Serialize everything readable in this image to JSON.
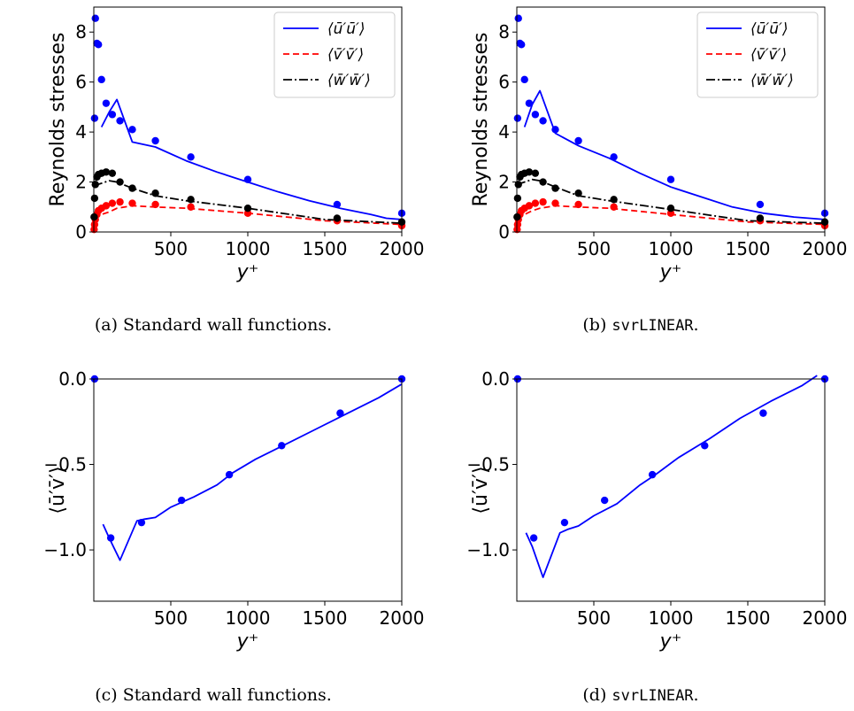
{
  "chart_data": [
    {
      "id": "a",
      "type": "line",
      "caption": "(a) Standard wall functions.",
      "xlabel": "y⁺",
      "ylabel": "Reynolds stresses",
      "xlim": [
        0,
        2000
      ],
      "ylim": [
        0,
        9
      ],
      "xticks": [
        500,
        1000,
        1500,
        2000
      ],
      "yticks": [
        0,
        2,
        4,
        6,
        8
      ],
      "legend_position": "top-right",
      "series": [
        {
          "name": "⟨ū′ū′⟩",
          "style": "solid",
          "color": "#0000ff",
          "x": [
            50,
            100,
            150,
            250,
            400,
            600,
            800,
            1000,
            1200,
            1400,
            1600,
            1800,
            1900,
            2000
          ],
          "y": [
            4.2,
            4.8,
            5.3,
            3.6,
            3.4,
            2.85,
            2.4,
            2.0,
            1.6,
            1.25,
            0.95,
            0.7,
            0.55,
            0.5
          ]
        },
        {
          "name": "⟨v̄′v̄′⟩",
          "style": "dashed",
          "color": "#ff0000",
          "x": [
            0,
            50,
            100,
            150,
            250,
            400,
            600,
            1000,
            1500,
            2000
          ],
          "y": [
            0.55,
            0.7,
            0.8,
            0.95,
            1.05,
            1.0,
            0.95,
            0.75,
            0.45,
            0.3
          ]
        },
        {
          "name": "⟨w̄′w̄′⟩",
          "style": "dashdot",
          "color": "#000000",
          "x": [
            0,
            50,
            100,
            150,
            250,
            400,
            600,
            1000,
            1500,
            2000
          ],
          "y": [
            1.85,
            1.95,
            2.05,
            2.0,
            1.75,
            1.45,
            1.25,
            0.95,
            0.5,
            0.35
          ]
        }
      ],
      "points": [
        {
          "color": "#0000ff",
          "x": [
            5,
            10,
            20,
            30,
            50,
            80,
            120,
            170,
            250,
            400,
            630,
            1000,
            1580,
            2000
          ],
          "y": [
            4.55,
            8.55,
            7.55,
            7.5,
            6.1,
            5.15,
            4.7,
            4.45,
            4.1,
            3.65,
            3.0,
            2.1,
            1.1,
            0.75
          ]
        },
        {
          "color": "#ff0000",
          "x": [
            2,
            5,
            10,
            20,
            30,
            50,
            80,
            120,
            170,
            250,
            400,
            630,
            1000,
            1580,
            2000
          ],
          "y": [
            0.1,
            0.3,
            0.5,
            0.7,
            0.85,
            0.95,
            1.05,
            1.15,
            1.2,
            1.15,
            1.1,
            1.0,
            0.75,
            0.45,
            0.25
          ]
        },
        {
          "color": "#000000",
          "x": [
            2,
            5,
            10,
            20,
            30,
            50,
            80,
            120,
            170,
            250,
            400,
            630,
            1000,
            1580,
            2000
          ],
          "y": [
            0.6,
            1.35,
            1.9,
            2.2,
            2.3,
            2.35,
            2.4,
            2.35,
            2.0,
            1.75,
            1.55,
            1.3,
            0.95,
            0.55,
            0.4
          ]
        }
      ]
    },
    {
      "id": "b",
      "type": "line",
      "caption_prefix": "(b) ",
      "caption_code": "svrLINEAR",
      "caption_suffix": ".",
      "xlabel": "y⁺",
      "ylabel": "Reynolds stresses",
      "xlim": [
        0,
        2000
      ],
      "ylim": [
        0,
        9
      ],
      "xticks": [
        500,
        1000,
        1500,
        2000
      ],
      "yticks": [
        0,
        2,
        4,
        6,
        8
      ],
      "legend_position": "top-right",
      "series": [
        {
          "name": "⟨ū′ū′⟩",
          "style": "solid",
          "color": "#0000ff",
          "x": [
            50,
            100,
            150,
            250,
            400,
            600,
            800,
            1000,
            1200,
            1400,
            1600,
            1800,
            1900,
            2000
          ],
          "y": [
            4.2,
            5.1,
            5.65,
            3.95,
            3.45,
            2.95,
            2.35,
            1.8,
            1.4,
            1.0,
            0.75,
            0.6,
            0.55,
            0.5
          ]
        },
        {
          "name": "⟨v̄′v̄′⟩",
          "style": "dashed",
          "color": "#ff0000",
          "x": [
            0,
            50,
            100,
            150,
            250,
            400,
            600,
            1000,
            1500,
            2000
          ],
          "y": [
            0.55,
            0.7,
            0.85,
            0.95,
            1.05,
            1.0,
            0.95,
            0.7,
            0.4,
            0.3
          ]
        },
        {
          "name": "⟨w̄′w̄′⟩",
          "style": "dashdot",
          "color": "#000000",
          "x": [
            0,
            50,
            100,
            150,
            250,
            400,
            600,
            1000,
            1500,
            2000
          ],
          "y": [
            1.9,
            2.0,
            2.1,
            2.05,
            1.8,
            1.45,
            1.25,
            0.9,
            0.45,
            0.35
          ]
        }
      ],
      "points": [
        {
          "color": "#0000ff",
          "x": [
            5,
            10,
            20,
            30,
            50,
            80,
            120,
            170,
            250,
            400,
            630,
            1000,
            1580,
            2000
          ],
          "y": [
            4.55,
            8.55,
            7.55,
            7.5,
            6.1,
            5.15,
            4.7,
            4.45,
            4.1,
            3.65,
            3.0,
            2.1,
            1.1,
            0.75
          ]
        },
        {
          "color": "#ff0000",
          "x": [
            2,
            5,
            10,
            20,
            30,
            50,
            80,
            120,
            170,
            250,
            400,
            630,
            1000,
            1580,
            2000
          ],
          "y": [
            0.1,
            0.3,
            0.5,
            0.7,
            0.85,
            0.95,
            1.05,
            1.15,
            1.2,
            1.15,
            1.1,
            1.0,
            0.75,
            0.45,
            0.25
          ]
        },
        {
          "color": "#000000",
          "x": [
            2,
            5,
            10,
            20,
            30,
            50,
            80,
            120,
            170,
            250,
            400,
            630,
            1000,
            1580,
            2000
          ],
          "y": [
            0.6,
            1.35,
            1.9,
            2.2,
            2.3,
            2.35,
            2.4,
            2.35,
            2.0,
            1.75,
            1.55,
            1.3,
            0.95,
            0.55,
            0.4
          ]
        }
      ]
    },
    {
      "id": "c",
      "type": "line",
      "caption": "(c) Standard wall functions.",
      "xlabel": "y⁺",
      "ylabel": "⟨ū′v̄′⟩",
      "xlim": [
        0,
        2000
      ],
      "ylim": [
        -1.3,
        0.0
      ],
      "xticks": [
        500,
        1000,
        1500,
        2000
      ],
      "yticks": [
        -1.0,
        -0.5,
        0.0
      ],
      "ytick_labels": [
        "−1.0",
        "−0.5",
        "0.0"
      ],
      "series": [
        {
          "color": "#0000ff",
          "x": [
            60,
            100,
            170,
            280,
            330,
            400,
            500,
            650,
            800,
            900,
            1050,
            1250,
            1450,
            1650,
            1850,
            2000
          ],
          "y": [
            -0.85,
            -0.93,
            -1.06,
            -0.83,
            -0.82,
            -0.81,
            -0.75,
            -0.69,
            -0.62,
            -0.55,
            -0.47,
            -0.38,
            -0.29,
            -0.2,
            -0.11,
            -0.03
          ]
        }
      ],
      "points": [
        {
          "color": "#0000ff",
          "x": [
            5,
            110,
            310,
            570,
            880,
            1220,
            1600,
            2000
          ],
          "y": [
            0.0,
            -0.93,
            -0.84,
            -0.71,
            -0.56,
            -0.39,
            -0.2,
            0.0
          ]
        }
      ]
    },
    {
      "id": "d",
      "type": "line",
      "caption_prefix": "(d) ",
      "caption_code": "svrLINEAR",
      "caption_suffix": ".",
      "xlabel": "y⁺",
      "ylabel": "⟨ū′v̄′⟩",
      "xlim": [
        0,
        2000
      ],
      "ylim": [
        -1.3,
        0.0
      ],
      "xticks": [
        500,
        1000,
        1500,
        2000
      ],
      "yticks": [
        -1.0,
        -0.5,
        0.0
      ],
      "ytick_labels": [
        "−1.0",
        "−0.5",
        "0.0"
      ],
      "series": [
        {
          "color": "#0000ff",
          "x": [
            60,
            100,
            170,
            280,
            330,
            400,
            500,
            650,
            800,
            900,
            1050,
            1250,
            1450,
            1650,
            1850,
            1950
          ],
          "y": [
            -0.9,
            -0.98,
            -1.16,
            -0.9,
            -0.88,
            -0.86,
            -0.8,
            -0.73,
            -0.62,
            -0.56,
            -0.46,
            -0.35,
            -0.23,
            -0.13,
            -0.04,
            0.02
          ]
        }
      ],
      "points": [
        {
          "color": "#0000ff",
          "x": [
            5,
            110,
            310,
            570,
            880,
            1220,
            1600,
            2000
          ],
          "y": [
            0.0,
            -0.93,
            -0.84,
            -0.71,
            -0.56,
            -0.39,
            -0.2,
            0.0
          ]
        }
      ]
    }
  ]
}
